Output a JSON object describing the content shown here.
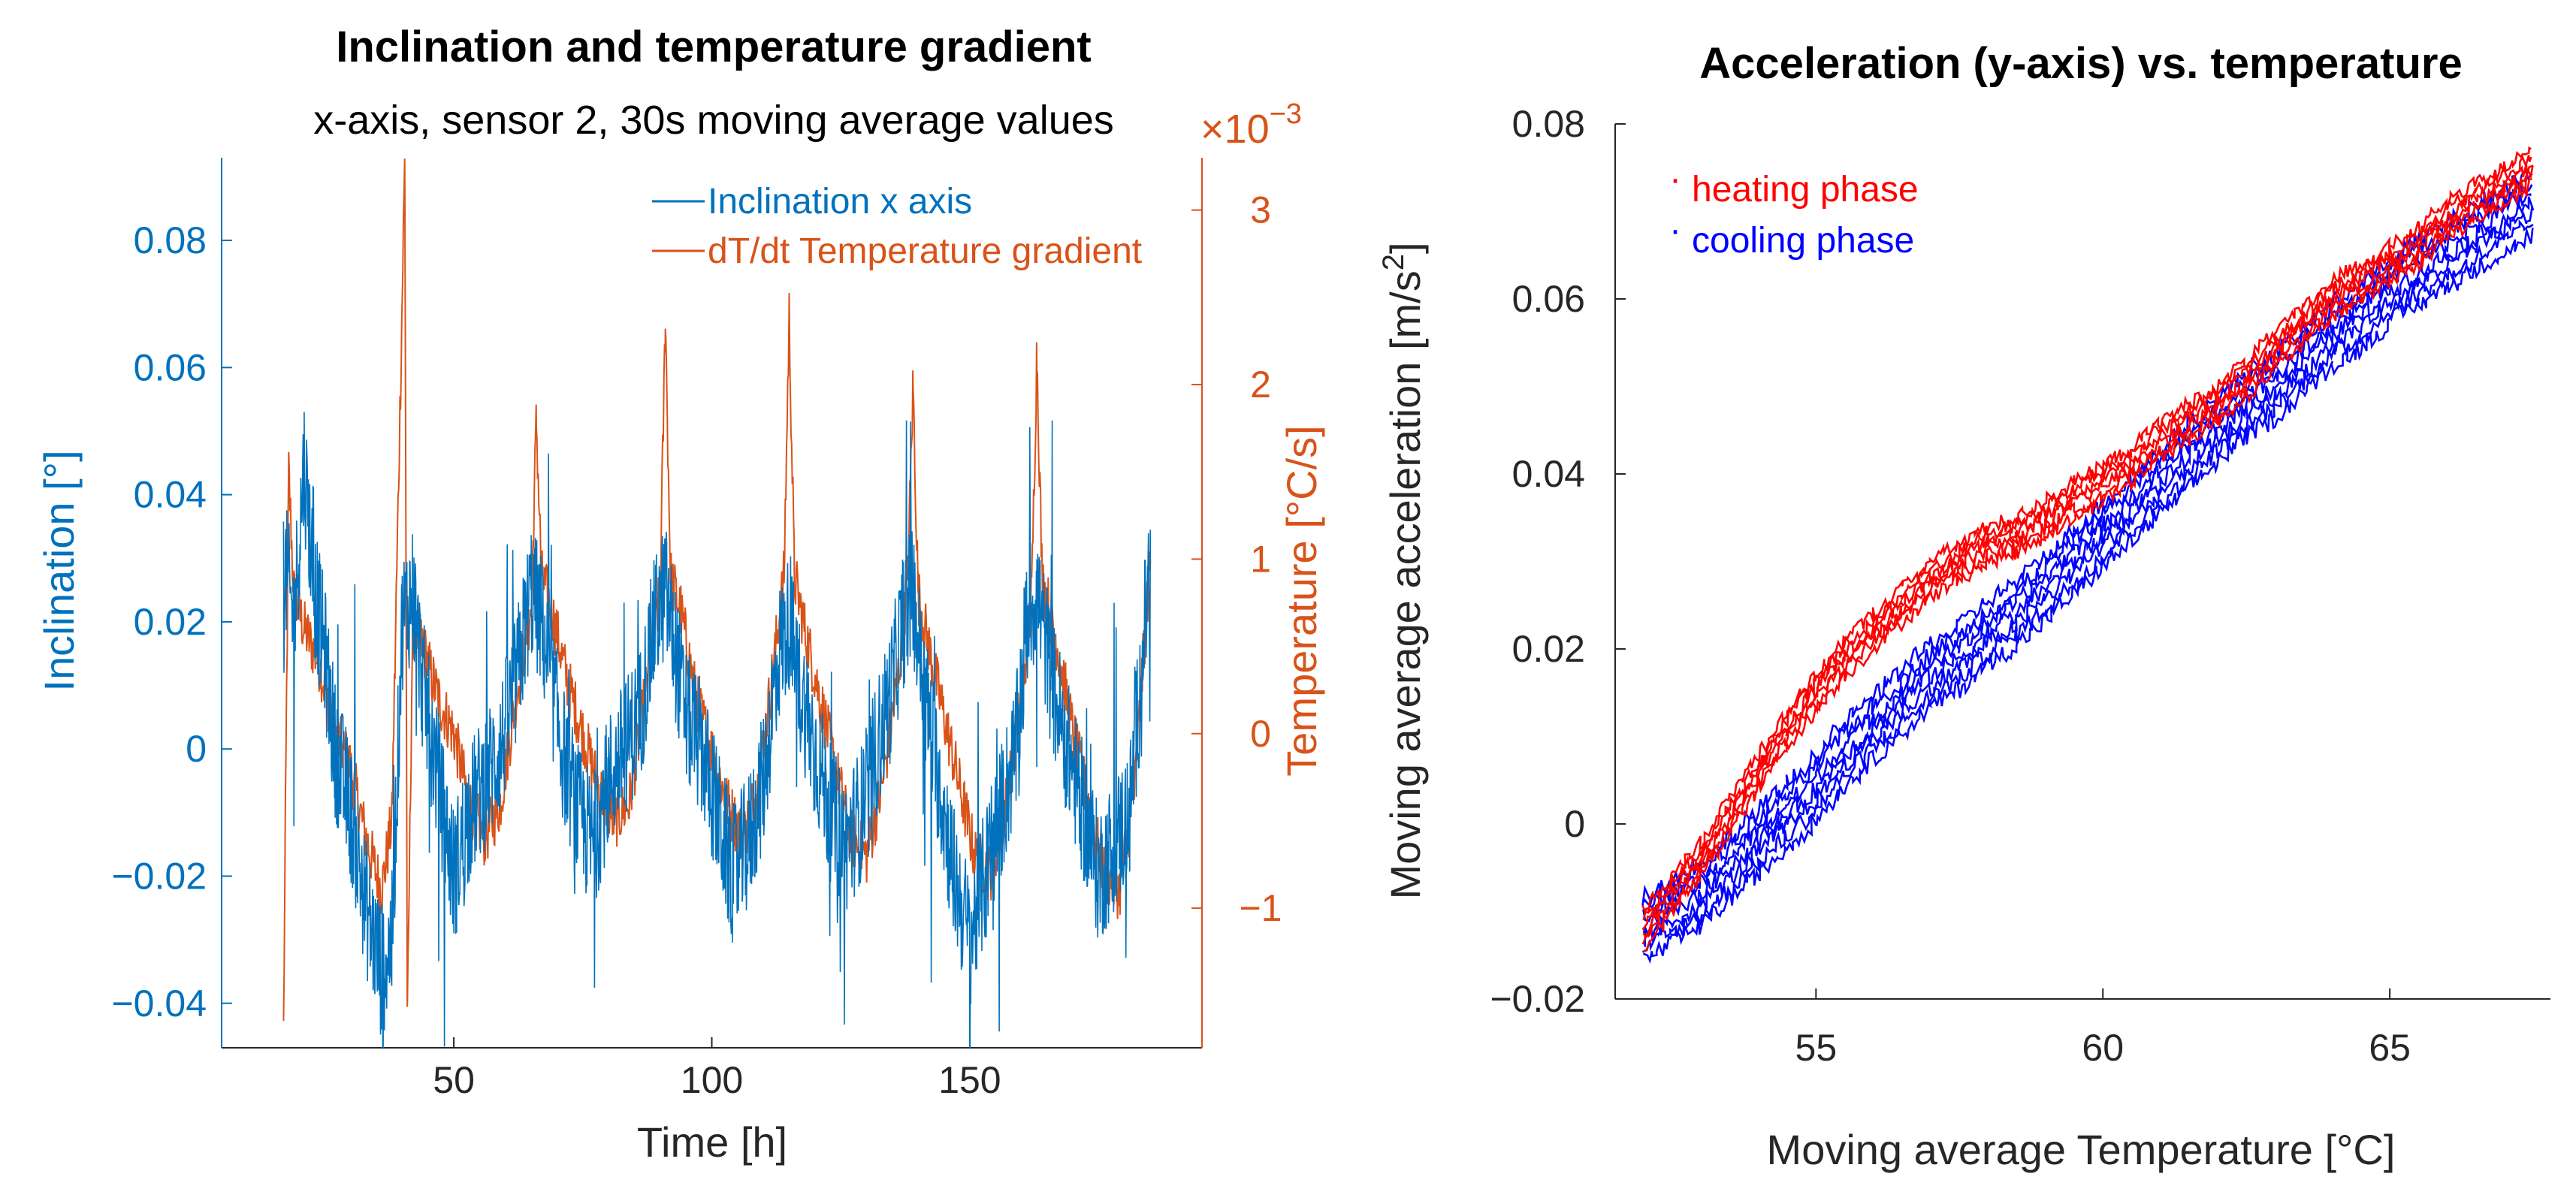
{
  "chart_data": [
    {
      "type": "line",
      "title": "Inclination and temperature gradient",
      "subtitle": "x-axis, sensor 2, 30s moving average values",
      "xlabel": "Time [h]",
      "ylabel_left": "Inclination [°]",
      "ylabel_right": "Temperature [°C/s]",
      "right_axis_exponent": "×10",
      "right_axis_exponent_power": "−3",
      "xlim": [
        5,
        195
      ],
      "ylim_left": [
        -0.047,
        0.093
      ],
      "ylim_right": [
        -1.8,
        3.3
      ],
      "xticks": [
        50,
        100,
        150
      ],
      "xtick_labels": [
        "50",
        "100",
        "150"
      ],
      "yticks_left": [
        -0.04,
        -0.02,
        0,
        0.02,
        0.04,
        0.06,
        0.08
      ],
      "ytick_labels_left": [
        "−0.04",
        "−0.02",
        "0",
        "0.02",
        "0.04",
        "0.06",
        "0.08"
      ],
      "yticks_right": [
        -1,
        0,
        1,
        2,
        3
      ],
      "ytick_labels_right": [
        "−1",
        "0",
        "1",
        "2",
        "3"
      ],
      "legend_position": "top-right",
      "grid": false,
      "colors": {
        "inclination": "#0072BD",
        "gradient": "#D95319"
      },
      "series": [
        {
          "name": "Inclination x axis",
          "axis": "left",
          "x": [
            17,
            19,
            21,
            23,
            25,
            27,
            30,
            33,
            36,
            38,
            40,
            42,
            44,
            46,
            48,
            50,
            53,
            56,
            59,
            62,
            65,
            67,
            69,
            71,
            74,
            77,
            80,
            83,
            86,
            89,
            91,
            93,
            95,
            98,
            101,
            104,
            107,
            110,
            113,
            115,
            117,
            120,
            123,
            126,
            129,
            132,
            135,
            137,
            139,
            141,
            144,
            147,
            150,
            153,
            156,
            159,
            161,
            163,
            166,
            169,
            172,
            175,
            178,
            181,
            183,
            185
          ],
          "y": [
            0.03,
            0.02,
            0.045,
            0.025,
            0.015,
            0.0,
            -0.01,
            -0.025,
            -0.035,
            -0.03,
            0.02,
            0.025,
            0.01,
            0.0,
            -0.01,
            -0.02,
            -0.01,
            -0.005,
            0.0,
            0.01,
            0.025,
            0.02,
            0.01,
            0.0,
            -0.01,
            -0.015,
            -0.005,
            0.0,
            0.005,
            0.02,
            0.025,
            0.015,
            0.005,
            0.0,
            -0.01,
            -0.02,
            -0.015,
            -0.005,
            0.015,
            0.02,
            0.01,
            0.0,
            -0.01,
            -0.015,
            -0.01,
            0.0,
            0.01,
            0.02,
            0.025,
            0.01,
            -0.005,
            -0.02,
            -0.03,
            -0.02,
            -0.01,
            0.0,
            0.02,
            0.025,
            0.01,
            0.0,
            -0.01,
            -0.02,
            -0.015,
            -0.01,
            0.01,
            0.03
          ]
        },
        {
          "name": "dT/dt Temperature gradient",
          "axis": "right",
          "x": [
            17,
            18,
            19,
            21,
            24,
            27,
            30,
            33,
            36,
            38,
            40,
            40.5,
            41,
            42,
            44,
            47,
            50,
            53,
            56,
            59,
            62,
            65,
            66,
            67,
            69,
            72,
            75,
            78,
            81,
            84,
            87,
            90,
            91,
            92,
            94,
            97,
            100,
            103,
            106,
            109,
            112,
            114,
            115,
            116,
            118,
            121,
            124,
            127,
            130,
            133,
            136,
            138,
            139,
            140,
            142,
            145,
            148,
            151,
            154,
            157,
            160,
            162,
            163,
            164,
            167,
            170,
            173,
            176,
            179,
            182,
            184,
            185
          ],
          "y": [
            -1.7,
            1.5,
            0.8,
            0.6,
            0.4,
            0.0,
            -0.2,
            -0.6,
            -0.9,
            -0.5,
            2.5,
            3.3,
            -1.7,
            0.6,
            0.5,
            0.2,
            0.0,
            -0.4,
            -0.6,
            -0.4,
            0.2,
            0.7,
            1.8,
            0.9,
            0.7,
            0.3,
            0.0,
            -0.3,
            -0.5,
            -0.4,
            0.2,
            0.8,
            2.4,
            0.9,
            0.7,
            0.2,
            -0.1,
            -0.4,
            -0.6,
            -0.3,
            0.4,
            0.9,
            2.4,
            0.9,
            0.6,
            0.2,
            -0.2,
            -0.6,
            -0.7,
            -0.3,
            0.3,
            0.9,
            2.0,
            0.8,
            0.5,
            0.1,
            -0.3,
            -0.7,
            -0.8,
            -0.4,
            0.2,
            0.8,
            2.2,
            0.9,
            0.5,
            0.0,
            -0.4,
            -0.8,
            -0.9,
            -0.3,
            0.6,
            1.0
          ]
        }
      ]
    },
    {
      "type": "scatter",
      "title": "Acceleration (y-axis) vs. temperature",
      "xlabel": "Moving average Temperature [°C]",
      "ylabel": "Moving average acceleration [m/s",
      "ylabel_sup": "2",
      "ylabel_end": "]",
      "xlim": [
        51.5,
        67.8
      ],
      "ylim": [
        -0.02,
        0.08
      ],
      "xticks": [
        55,
        60,
        65
      ],
      "xtick_labels": [
        "55",
        "60",
        "65"
      ],
      "yticks": [
        -0.02,
        0,
        0.02,
        0.04,
        0.06,
        0.08
      ],
      "ytick_labels": [
        "−0.02",
        "0",
        "0.02",
        "0.04",
        "0.06",
        "0.08"
      ],
      "legend_position": "top-left",
      "grid": false,
      "colors": {
        "heating": "#FF0000",
        "cooling": "#0000FF"
      },
      "series": [
        {
          "name": "heating phase",
          "x": [
            52.0,
            52.5,
            53.0,
            53.5,
            54.0,
            54.5,
            55.0,
            55.5,
            56.0,
            56.5,
            57.0,
            57.5,
            58.0,
            58.5,
            59.0,
            59.5,
            60.0,
            60.5,
            61.0,
            61.5,
            62.0,
            62.5,
            63.0,
            63.5,
            64.0,
            64.5,
            65.0,
            65.5,
            66.0,
            66.5,
            67.0,
            67.5
          ],
          "y": [
            -0.012,
            -0.008,
            -0.004,
            0.001,
            0.006,
            0.011,
            0.015,
            0.019,
            0.022,
            0.025,
            0.028,
            0.03,
            0.032,
            0.033,
            0.035,
            0.037,
            0.039,
            0.041,
            0.044,
            0.046,
            0.048,
            0.051,
            0.054,
            0.057,
            0.06,
            0.062,
            0.064,
            0.066,
            0.069,
            0.071,
            0.073,
            0.075
          ]
        },
        {
          "name": "cooling phase",
          "x": [
            52.0,
            52.5,
            53.0,
            53.5,
            54.0,
            54.5,
            55.0,
            55.5,
            56.0,
            56.5,
            57.0,
            57.5,
            58.0,
            58.5,
            59.0,
            59.5,
            60.0,
            60.5,
            61.0,
            61.5,
            62.0,
            62.5,
            63.0,
            63.5,
            64.0,
            64.5,
            65.0,
            65.5,
            66.0,
            66.5,
            67.0,
            67.5
          ],
          "y": [
            -0.012,
            -0.01,
            -0.008,
            -0.005,
            -0.002,
            0.001,
            0.004,
            0.008,
            0.011,
            0.014,
            0.017,
            0.019,
            0.022,
            0.024,
            0.027,
            0.03,
            0.033,
            0.036,
            0.039,
            0.042,
            0.045,
            0.048,
            0.05,
            0.053,
            0.056,
            0.058,
            0.061,
            0.063,
            0.065,
            0.067,
            0.069,
            0.071
          ]
        }
      ]
    }
  ]
}
